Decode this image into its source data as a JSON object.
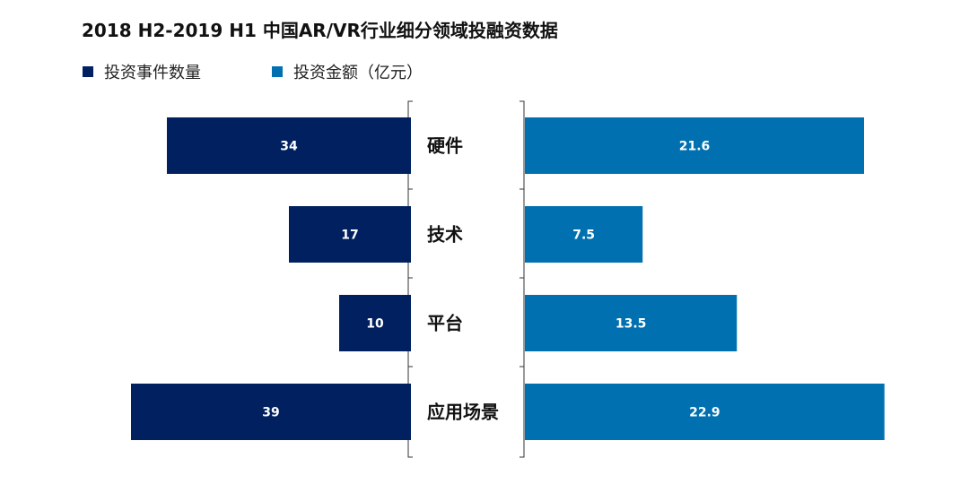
{
  "chart_data": {
    "type": "bar",
    "orientation": "horizontal-butterfly",
    "title": "2018 H2-2019 H1 中国AR/VR行业细分领域投融资数据",
    "categories": [
      "硬件",
      "技术",
      "平台",
      "应用场景"
    ],
    "series": [
      {
        "name": "投资事件数量",
        "values": [
          34,
          17,
          10,
          39
        ],
        "labels": [
          "34",
          "17",
          "10",
          "39"
        ],
        "color": "#002060",
        "side": "left"
      },
      {
        "name": "投资金额（亿元）",
        "values": [
          21.6,
          7.5,
          13.5,
          22.9
        ],
        "labels": [
          "21.6",
          "7.5",
          "13.5",
          "22.9"
        ],
        "color": "#0070B0",
        "side": "right"
      }
    ],
    "legend": "top-left",
    "grid": false
  }
}
